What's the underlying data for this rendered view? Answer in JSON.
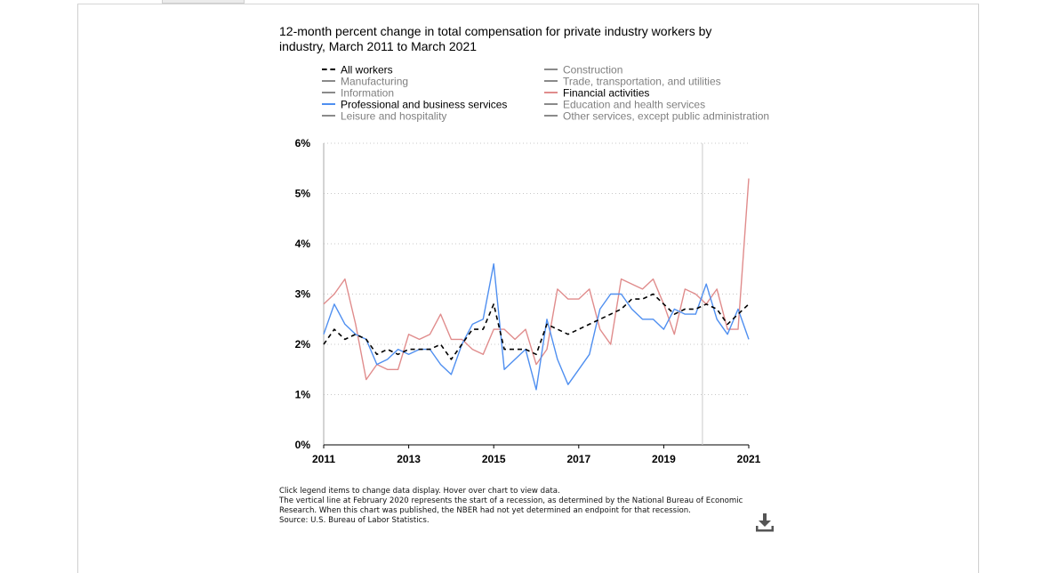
{
  "title": "12-month percent change in total compensation for private industry workers by industry, March 2011 to March 2021",
  "notes": {
    "instructions": "Click legend items to change data display. Hover over chart to view data.",
    "recession": "The vertical line at February 2020 represents the start of a recession, as determined by the National Bureau of Economic Research. When this chart was published, the NBER had not yet determined an endpoint for that recession.",
    "source": "Source: U.S. Bureau of Labor Statistics."
  },
  "icons": {
    "download": "download-icon"
  },
  "colors": {
    "all_workers": "#000000",
    "inactive": "#8a8a8a",
    "financial": "#e08c8c",
    "professional": "#4f8ff0",
    "grid": "#c8c8c8",
    "recession_line": "#cccccc"
  },
  "legend": [
    {
      "label": "All workers",
      "style": "dashed",
      "color": "#000000",
      "active": true
    },
    {
      "label": "Manufacturing",
      "style": "solid",
      "color": "#8a8a8a",
      "active": false
    },
    {
      "label": "Information",
      "style": "solid",
      "color": "#8a8a8a",
      "active": false
    },
    {
      "label": "Professional and business services",
      "style": "solid",
      "color": "#4f8ff0",
      "active": true
    },
    {
      "label": "Leisure and hospitality",
      "style": "solid",
      "color": "#8a8a8a",
      "active": false
    },
    {
      "label": "Construction",
      "style": "solid",
      "color": "#8a8a8a",
      "active": false
    },
    {
      "label": "Trade, transportation, and utilities",
      "style": "solid",
      "color": "#8a8a8a",
      "active": false
    },
    {
      "label": "Financial activities",
      "style": "solid",
      "color": "#e08c8c",
      "active": true
    },
    {
      "label": "Education and health services",
      "style": "solid",
      "color": "#8a8a8a",
      "active": false
    },
    {
      "label": "Other services, except public administration",
      "style": "solid",
      "color": "#8a8a8a",
      "active": false
    }
  ],
  "chart_data": {
    "type": "line",
    "title": "12-month percent change in total compensation for private industry workers by industry, March 2011 to March 2021",
    "xlabel": "",
    "ylabel": "",
    "x_ticks": [
      "2011",
      "2013",
      "2015",
      "2017",
      "2019",
      "2021"
    ],
    "y_ticks": [
      "0%",
      "1%",
      "2%",
      "3%",
      "4%",
      "5%",
      "6%"
    ],
    "ylim": [
      0,
      6
    ],
    "xlim": [
      2011.17,
      2021.17
    ],
    "grid": "horizontal dotted",
    "legend_position": "top",
    "recession_marker": 2020.08,
    "x": [
      2011.17,
      2011.42,
      2011.67,
      2011.92,
      2012.17,
      2012.42,
      2012.67,
      2012.92,
      2013.17,
      2013.42,
      2013.67,
      2013.92,
      2014.17,
      2014.42,
      2014.67,
      2014.92,
      2015.17,
      2015.42,
      2015.67,
      2015.92,
      2016.17,
      2016.42,
      2016.67,
      2016.92,
      2017.17,
      2017.42,
      2017.67,
      2017.92,
      2018.17,
      2018.42,
      2018.67,
      2018.92,
      2019.17,
      2019.42,
      2019.67,
      2019.92,
      2020.17,
      2020.42,
      2020.67,
      2020.92,
      2021.17
    ],
    "series": [
      {
        "name": "All workers",
        "values": [
          2.0,
          2.3,
          2.1,
          2.2,
          2.1,
          1.8,
          1.9,
          1.8,
          1.9,
          1.9,
          1.9,
          2.0,
          1.7,
          2.0,
          2.3,
          2.3,
          2.8,
          1.9,
          1.9,
          1.9,
          1.8,
          2.4,
          2.3,
          2.2,
          2.3,
          2.4,
          2.5,
          2.6,
          2.7,
          2.9,
          2.9,
          3.0,
          2.8,
          2.6,
          2.7,
          2.7,
          2.8,
          2.7,
          2.4,
          2.6,
          2.8
        ]
      },
      {
        "name": "Professional and business services",
        "values": [
          2.2,
          2.8,
          2.4,
          2.2,
          2.1,
          1.6,
          1.7,
          1.9,
          1.8,
          1.9,
          1.9,
          1.6,
          1.4,
          2.0,
          2.4,
          2.5,
          3.6,
          1.5,
          1.7,
          1.9,
          1.1,
          2.5,
          1.7,
          1.2,
          1.5,
          1.8,
          2.7,
          3.0,
          3.0,
          2.7,
          2.5,
          2.5,
          2.3,
          2.7,
          2.6,
          2.6,
          3.2,
          2.5,
          2.2,
          2.7,
          2.1
        ]
      },
      {
        "name": "Financial activities",
        "values": [
          2.8,
          3.0,
          3.3,
          2.4,
          1.3,
          1.6,
          1.5,
          1.5,
          2.2,
          2.1,
          2.2,
          2.6,
          2.1,
          2.1,
          1.9,
          1.8,
          2.3,
          2.3,
          2.1,
          2.3,
          1.6,
          1.9,
          3.1,
          2.9,
          2.9,
          3.1,
          2.3,
          2.0,
          3.3,
          3.2,
          3.1,
          3.3,
          2.8,
          2.2,
          3.1,
          3.0,
          2.8,
          3.1,
          2.3,
          2.3,
          5.3
        ]
      }
    ]
  }
}
